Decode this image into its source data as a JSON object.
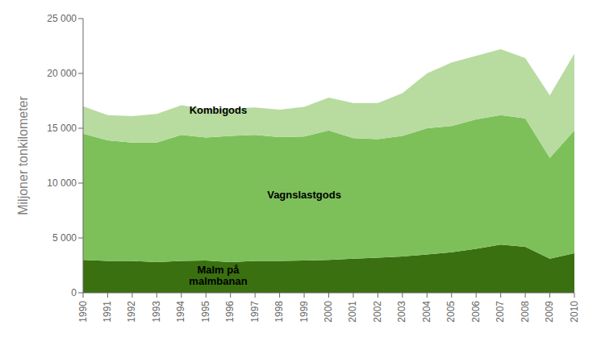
{
  "chart_data": {
    "type": "area",
    "stacked": true,
    "ylabel": "Miljoner tonkilometer",
    "x": [
      1990,
      1991,
      1992,
      1993,
      1994,
      1995,
      1996,
      1997,
      1998,
      1999,
      2000,
      2001,
      2002,
      2003,
      2004,
      2005,
      2006,
      2007,
      2008,
      2009,
      2010
    ],
    "xlim": [
      1990,
      2010
    ],
    "xticks": [
      1990,
      1991,
      1992,
      1993,
      1994,
      1995,
      1996,
      1997,
      1998,
      1999,
      2000,
      2001,
      2002,
      2003,
      2004,
      2005,
      2006,
      2007,
      2008,
      2009,
      2010
    ],
    "ylim": [
      0,
      25000
    ],
    "yticks": [
      0,
      {
        "value": 5000,
        "label": "5 000"
      },
      {
        "value": 10000,
        "label": "10 000"
      },
      {
        "value": 15000,
        "label": "15 000"
      },
      {
        "value": 20000,
        "label": "20 000"
      },
      {
        "value": 25000,
        "label": "25 000"
      }
    ],
    "grid": false,
    "series": [
      {
        "color": "#3a7010",
        "values": [
          3000,
          2900,
          2900,
          2800,
          2900,
          2950,
          2800,
          2900,
          2900,
          2950,
          3000,
          3100,
          3200,
          3300,
          3500,
          3700,
          4000,
          4400,
          4200,
          3100,
          3600
        ]
      },
      {
        "color": "#7dc05a",
        "values": [
          11500,
          11000,
          10800,
          10900,
          11500,
          11200,
          11500,
          11500,
          11300,
          11300,
          11800,
          11000,
          10800,
          11000,
          11500,
          11500,
          11800,
          11800,
          11700,
          9200,
          11200
        ]
      },
      {
        "color": "#b8dba0",
        "values": [
          2500,
          2300,
          2400,
          2600,
          2700,
          2600,
          2500,
          2500,
          2500,
          2700,
          3000,
          3200,
          3300,
          3900,
          5000,
          5800,
          5800,
          6000,
          5500,
          5700,
          7000
        ]
      }
    ],
    "annotations": [
      {
        "text": "Malm på\nmalmbanan",
        "x": 1995.5,
        "y": 1600
      },
      {
        "text": "Vagnslastgods",
        "x": 1999,
        "y": 9000
      },
      {
        "text": "Kombigods",
        "x": 1995.5,
        "y": 16700
      }
    ]
  }
}
